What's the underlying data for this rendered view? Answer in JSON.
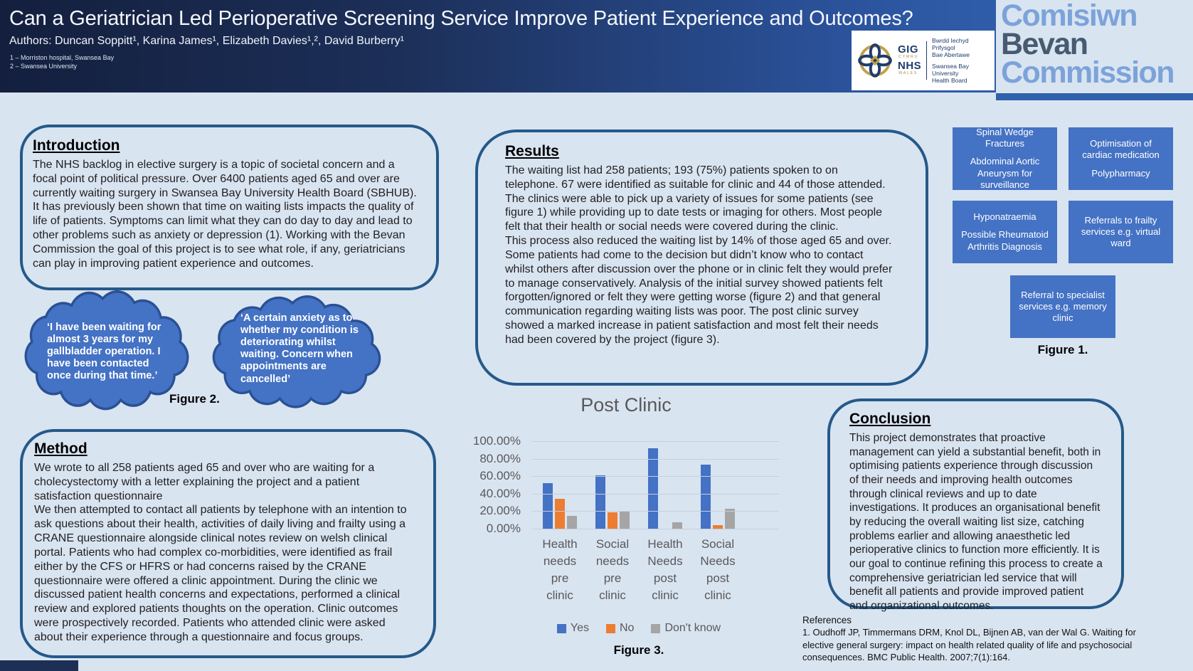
{
  "header": {
    "title": "Can a Geriatrician Led Perioperative Screening Service Improve Patient Experience and Outcomes?",
    "authors": "Authors: Duncan Soppitt¹, Karina James¹, Elizabeth Davies¹,², David Burberry¹",
    "affiliations": [
      "1 – Morriston hospital, Swansea Bay",
      "2 – Swansea University"
    ]
  },
  "nhs_logo": {
    "gig": "GIG",
    "cymru": "CYMRU",
    "nhs": "NHS",
    "wales": "WALES",
    "board_cy_1": "Bwrdd Iechyd Prifysgol",
    "board_cy_2": "Bae Abertawe",
    "board_en_1": "Swansea Bay University",
    "board_en_2": "Health Board"
  },
  "bevan_logo": {
    "line1": "Comisiwn",
    "line2": "Bevan",
    "line3": "Commission"
  },
  "introduction": {
    "heading": "Introduction",
    "body": "The NHS backlog in elective surgery is a topic of societal concern and a focal point of political pressure. Over 6400 patients aged 65 and over are currently waiting surgery in Swansea Bay University Health Board (SBHUB). It has previously been shown that time on waiting lists impacts the quality of life of patients. Symptoms can limit what they can do day to day and lead to other problems such as anxiety or depression (1). Working with the Bevan Commission the goal of this project is to see what role, if any, geriatricians can play in improving patient experience and outcomes."
  },
  "figure2": {
    "bubble1": "‘I have been waiting for almost 3 years for my gallbladder operation. I have been contacted once during that time.’",
    "bubble2": "‘A certain anxiety as to whether my condition is deteriorating whilst waiting. Concern when appointments are cancelled’",
    "caption": "Figure 2."
  },
  "method": {
    "heading": "Method",
    "p1": "We wrote to all 258 patients aged 65 and over who are waiting for a cholecystectomy with a letter explaining the project and a patient satisfaction questionnaire",
    "p2": "We then attempted to contact all patients by telephone with an intention to ask questions about their health, activities of daily living and frailty using a CRANE questionnaire alongside clinical notes review on welsh clinical portal. Patients who had complex co-morbidities, were identified as frail either by the CFS or HFRS or had concerns raised by the CRANE questionnaire were offered a clinic appointment. During the clinic we discussed patient health concerns and expectations, performed a clinical review and explored patients thoughts on the operation. Clinic outcomes were prospectively recorded. Patients who attended clinic were asked about their experience through a questionnaire and focus groups."
  },
  "results": {
    "heading": "Results",
    "p1": "The waiting list had 258 patients; 193 (75%) patients spoken to on telephone. 67 were identified as suitable for clinic and 44 of those attended. The clinics were able to pick up a variety of issues for some patients (see figure 1) while providing up to date tests or imaging for others. Most people felt that their health or social needs were covered during the clinic.",
    "p2": "This process also reduced the waiting list by 14% of those aged 65 and over. Some patients had come to the decision but didn’t know who to contact whilst others after discussion over the phone or in clinic felt they would prefer to manage conservatively. Analysis of the initial survey showed patients felt forgotten/ignored or felt they were getting worse (figure 2) and that general communication regarding waiting lists was poor. The post clinic survey showed a marked increase in patient satisfaction and most felt their needs had been covered by the project (figure 3)."
  },
  "figure1": {
    "boxes": [
      {
        "lines": [
          "Spinal Wedge Fractures",
          "Abdominal Aortic Aneurysm for surveillance"
        ]
      },
      {
        "lines": [
          "Optimisation of cardiac medication",
          "Polypharmacy"
        ]
      },
      {
        "lines": [
          "Hyponatraemia",
          "Possible Rheumatoid Arthritis Diagnosis"
        ]
      },
      {
        "lines": [
          "Referrals to frailty services e.g. virtual ward"
        ]
      },
      {
        "lines": [
          "Referral to specialist services e.g. memory clinic"
        ]
      }
    ],
    "caption": "Figure 1."
  },
  "chart_data": {
    "type": "bar",
    "title": "Post Clinic",
    "categories": [
      "Health needs pre clinic",
      "Social needs pre clinic",
      "Health Needs post clinic",
      "Social Needs post clinic"
    ],
    "series": [
      {
        "name": "Yes",
        "color": "#4472c4",
        "values": [
          52,
          61,
          92,
          73
        ]
      },
      {
        "name": "No",
        "color": "#ed7d31",
        "values": [
          34,
          19,
          0,
          4
        ]
      },
      {
        "name": "Don't know",
        "color": "#a5a5a5",
        "values": [
          15,
          20,
          7,
          23
        ]
      }
    ],
    "y_ticks": [
      "100.00%",
      "80.00%",
      "60.00%",
      "40.00%",
      "20.00%",
      "0.00%"
    ],
    "ylim": [
      0,
      100
    ],
    "grid": true,
    "legend_position": "bottom"
  },
  "figure3_caption": "Figure 3.",
  "conclusion": {
    "heading": "Conclusion",
    "body": "This project demonstrates that proactive management can yield a substantial benefit, both in optimising patients experience through discussion of their needs and improving health outcomes through clinical reviews and up to date investigations. It produces an organisational benefit by reducing the overall waiting list size, catching problems earlier and allowing anaesthetic led perioperative clinics to function more efficiently. It is our goal to continue refining this process to create a comprehensive geriatrician led service that will benefit all patients and provide improved patient and organizational outcomes."
  },
  "references": {
    "heading": "References",
    "items": [
      "1. Oudhoff JP, Timmermans DRM, Knol DL, Bijnen AB, van der Wal G. Waiting for elective general surgery: impact on health related quality of life and psychosocial consequences. BMC Public Health. 2007;7(1):164."
    ]
  },
  "colors": {
    "accent_blue": "#4472c4",
    "cloud_border": "#2a5194",
    "box_border": "#25598a",
    "bar_orange": "#ed7d31",
    "bar_gray": "#a5a5a5",
    "bevan_light": "#7ca3d9",
    "bevan_dark": "#465a70"
  }
}
